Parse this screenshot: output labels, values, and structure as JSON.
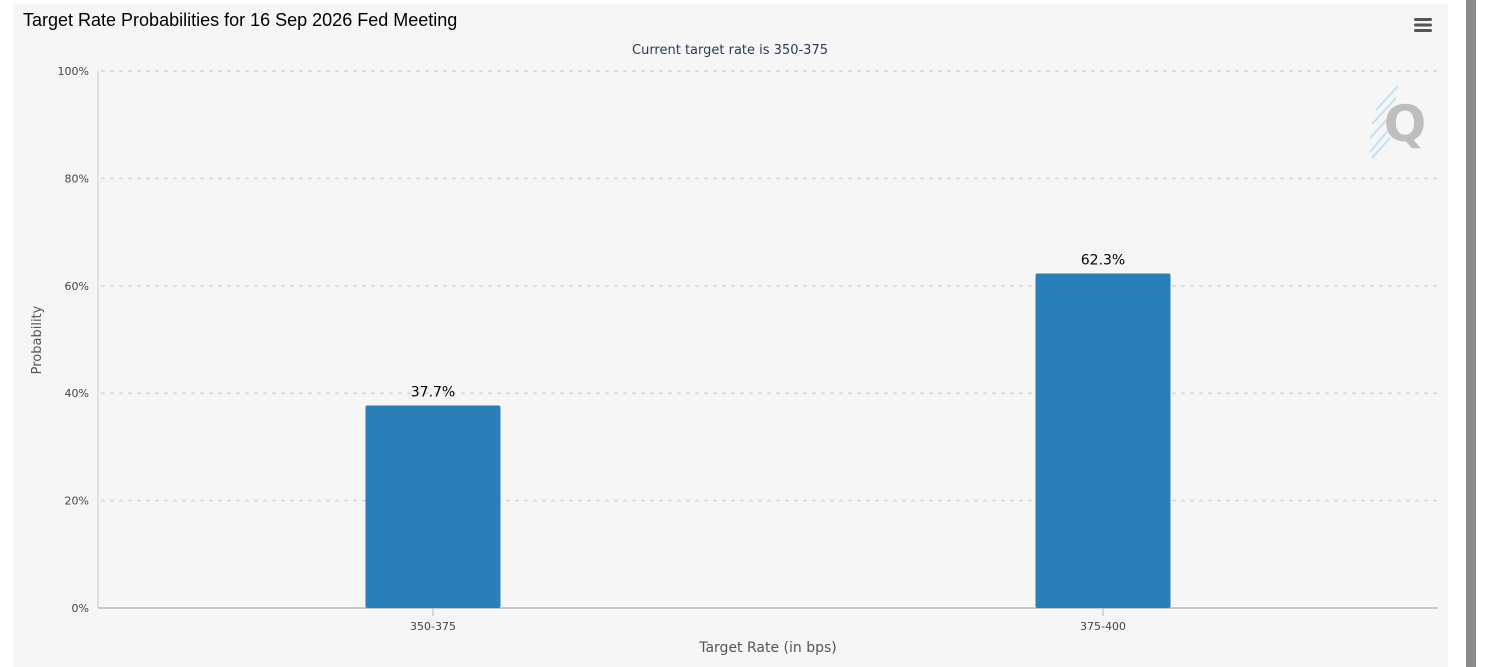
{
  "page": {
    "title": "Target Rate Probabilities for 16 Sep 2026 Fed Meeting"
  },
  "menu": {
    "icon": "hamburger-menu-icon"
  },
  "watermark": {
    "icon": "q-logo-icon"
  },
  "colors": {
    "bar": "#2a7fb8",
    "panel": "#f6f6f6",
    "grid": "#d9d9d9",
    "axis_text": "#444444",
    "subtitle": "#2b3a55"
  },
  "chart_data": {
    "type": "bar",
    "subtitle": "Current target rate is 350-375",
    "categories": [
      "350-375",
      "375-400"
    ],
    "values": [
      37.7,
      62.3
    ],
    "data_labels": [
      "37.7%",
      "62.3%"
    ],
    "xlabel": "Target Rate (in bps)",
    "ylabel": "Probability",
    "ylim": [
      0,
      100
    ],
    "yticks": [
      0,
      20,
      40,
      60,
      80,
      100
    ],
    "ytick_labels": [
      "0%",
      "20%",
      "40%",
      "60%",
      "80%",
      "100%"
    ],
    "grid": true,
    "legend": "none"
  }
}
